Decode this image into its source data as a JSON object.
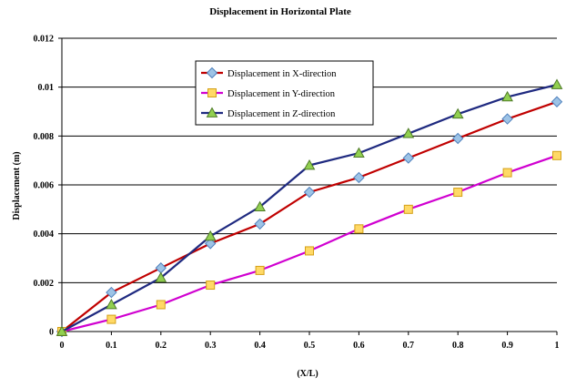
{
  "chart_data": {
    "type": "line",
    "title": "Displacement in Horizontal Plate",
    "xlabel": "(X/L)",
    "ylabel": "Displacement (m)",
    "x": [
      0,
      0.1,
      0.2,
      0.3,
      0.4,
      0.5,
      0.6,
      0.7,
      0.8,
      0.9,
      1
    ],
    "xticks": [
      "0",
      "0.1",
      "0.2",
      "0.3",
      "0.4",
      "0.5",
      "0.6",
      "0.7",
      "0.8",
      "0.9",
      "1"
    ],
    "yticks": [
      "0",
      "0.002",
      "0.004",
      "0.006",
      "0.008",
      "0.01",
      "0.012"
    ],
    "xlim": [
      0,
      1
    ],
    "ylim": [
      0,
      0.012
    ],
    "grid": "horizontal",
    "legend_position": "upper-center",
    "series": [
      {
        "name": "Displacement in X-direction",
        "values": [
          0,
          0.0016,
          0.0026,
          0.0036,
          0.0044,
          0.0057,
          0.0063,
          0.0071,
          0.0079,
          0.0087,
          0.0094
        ],
        "color": "#c00000",
        "marker": "diamond",
        "marker_fill": "#9dc3e6",
        "marker_stroke": "#4f81bd"
      },
      {
        "name": "Displacement in Y-direction",
        "values": [
          0,
          0.0005,
          0.0011,
          0.0019,
          0.0025,
          0.0033,
          0.0042,
          0.005,
          0.0057,
          0.0065,
          0.0072
        ],
        "color": "#d000d0",
        "marker": "square",
        "marker_fill": "#ffd966",
        "marker_stroke": "#d4a017"
      },
      {
        "name": "Displacement in Z-direction",
        "values": [
          0,
          0.0011,
          0.0022,
          0.0039,
          0.0051,
          0.0068,
          0.0073,
          0.0081,
          0.0089,
          0.0096,
          0.0101
        ],
        "color": "#1f2a80",
        "marker": "triangle",
        "marker_fill": "#92d050",
        "marker_stroke": "#4e7a27"
      }
    ]
  }
}
